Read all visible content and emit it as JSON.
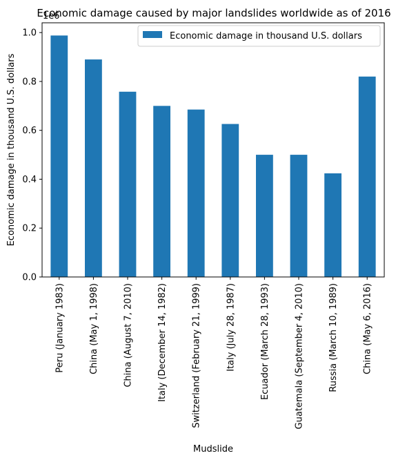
{
  "chart_data": {
    "type": "bar",
    "title": "Economic damage caused by major landslides worldwide as of 2016",
    "xlabel": "Mudslide",
    "ylabel": "Economic damage in thousand U.S. dollars",
    "y_multiplier_label": "1e6",
    "ylim": [
      0,
      1.04
    ],
    "yticks": [
      0.0,
      0.2,
      0.4,
      0.6,
      0.8,
      1.0
    ],
    "ytick_labels": [
      "0.0",
      "0.2",
      "0.4",
      "0.6",
      "0.8",
      "1.0"
    ],
    "grid": false,
    "legend_position": "top-right",
    "series": [
      {
        "name": "Economic damage in thousand U.S. dollars",
        "color": "#1f77b4",
        "values": [
          0.988,
          0.89,
          0.758,
          0.7,
          0.685,
          0.626,
          0.5,
          0.5,
          0.424,
          0.82
        ]
      }
    ],
    "categories": [
      "Peru (January 1983)",
      "China (May 1, 1998)",
      "China (August 7, 2010)",
      "Italy (December 14, 1982)",
      "Switzerland (February 21, 1999)",
      "Italy (July 28, 1987)",
      "Ecuador (March 28, 1993)",
      "Guatemala (September 4, 2010)",
      "Russia (March 10, 1989)",
      "China (May 6, 2016)"
    ]
  }
}
